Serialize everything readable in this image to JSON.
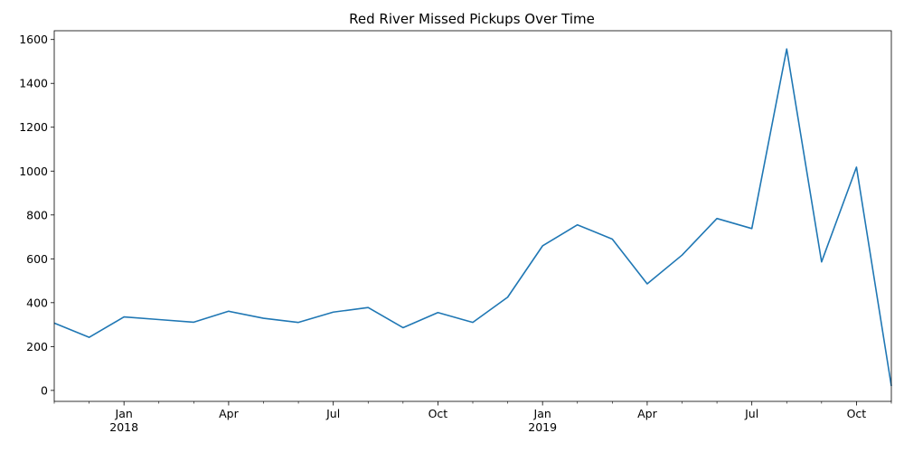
{
  "chart_data": {
    "type": "line",
    "title": "Red River Missed Pickups Over Time",
    "xlabel": "",
    "ylabel": "",
    "ylim": [
      -50,
      1640
    ],
    "y_ticks": [
      0,
      200,
      400,
      600,
      800,
      1000,
      1200,
      1400,
      1600
    ],
    "x_range": [
      "2017-11",
      "2019-11"
    ],
    "x_major_ticks": [
      {
        "date": "2018-01",
        "label": "Jan",
        "sublabel": "2018"
      },
      {
        "date": "2018-04",
        "label": "Apr",
        "sublabel": ""
      },
      {
        "date": "2018-07",
        "label": "Jul",
        "sublabel": ""
      },
      {
        "date": "2018-10",
        "label": "Oct",
        "sublabel": ""
      },
      {
        "date": "2019-01",
        "label": "Jan",
        "sublabel": "2019"
      },
      {
        "date": "2019-04",
        "label": "Apr",
        "sublabel": ""
      },
      {
        "date": "2019-07",
        "label": "Jul",
        "sublabel": ""
      },
      {
        "date": "2019-10",
        "label": "Oct",
        "sublabel": ""
      }
    ],
    "grid": false,
    "legend": "none",
    "series": [
      {
        "color": "#1f77b4",
        "x": [
          "2017-11",
          "2017-12",
          "2018-01",
          "2018-02",
          "2018-03",
          "2018-04",
          "2018-05",
          "2018-06",
          "2018-07",
          "2018-08",
          "2018-09",
          "2018-10",
          "2018-11",
          "2018-12",
          "2019-01",
          "2019-02",
          "2019-03",
          "2019-04",
          "2019-05",
          "2019-06",
          "2019-07",
          "2019-08",
          "2019-09",
          "2019-10",
          "2019-11"
        ],
        "values": [
          307,
          242,
          335,
          323,
          311,
          361,
          329,
          310,
          357,
          378,
          286,
          355,
          310,
          425,
          659,
          755,
          690,
          486,
          617,
          784,
          738,
          1557,
          586,
          1018,
          20
        ]
      }
    ]
  }
}
